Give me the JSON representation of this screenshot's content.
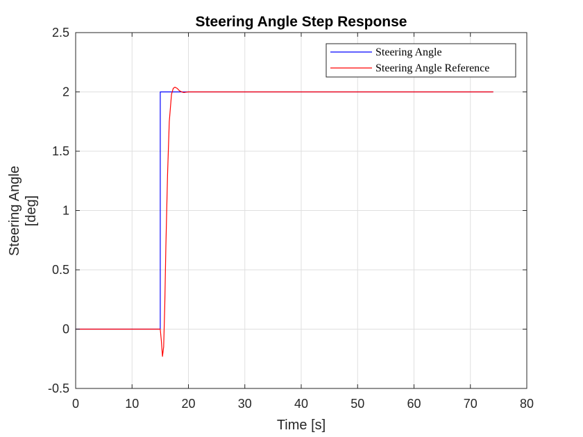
{
  "chart_data": {
    "type": "line",
    "title": "Steering Angle Step Response",
    "xlabel": "Time [s]",
    "ylabel_lines": [
      "Steering Angle",
      "[deg]"
    ],
    "xlim": [
      0,
      80
    ],
    "ylim": [
      -0.5,
      2.5
    ],
    "xticks": [
      0,
      10,
      20,
      30,
      40,
      50,
      60,
      70,
      80
    ],
    "yticks": [
      -0.5,
      0,
      0.5,
      1,
      1.5,
      2,
      2.5
    ],
    "xtick_labels": [
      "0",
      "10",
      "20",
      "30",
      "40",
      "50",
      "60",
      "70",
      "80"
    ],
    "ytick_labels": [
      "-0.5",
      "0",
      "0.5",
      "1",
      "1.5",
      "2",
      "2.5"
    ],
    "grid": true,
    "legend_position": "top-right",
    "series": [
      {
        "name": "Steering Angle",
        "color": "#0000ff",
        "x": [
          0,
          15,
          15,
          74
        ],
        "y": [
          0,
          0,
          2,
          2
        ]
      },
      {
        "name": "Steering Angle Reference",
        "color": "#ff0000",
        "x": [
          0,
          15,
          15.2,
          15.4,
          15.6,
          15.8,
          16,
          16.3,
          16.6,
          17,
          17.3,
          17.6,
          18,
          18.4,
          18.8,
          19.2,
          19.6,
          20,
          21,
          74
        ],
        "y": [
          0,
          0,
          -0.1,
          -0.23,
          -0.15,
          0.2,
          0.7,
          1.3,
          1.75,
          1.98,
          2.03,
          2.04,
          2.03,
          2.01,
          2.0,
          1.995,
          1.998,
          2.0,
          2.0,
          2.0
        ]
      }
    ]
  }
}
